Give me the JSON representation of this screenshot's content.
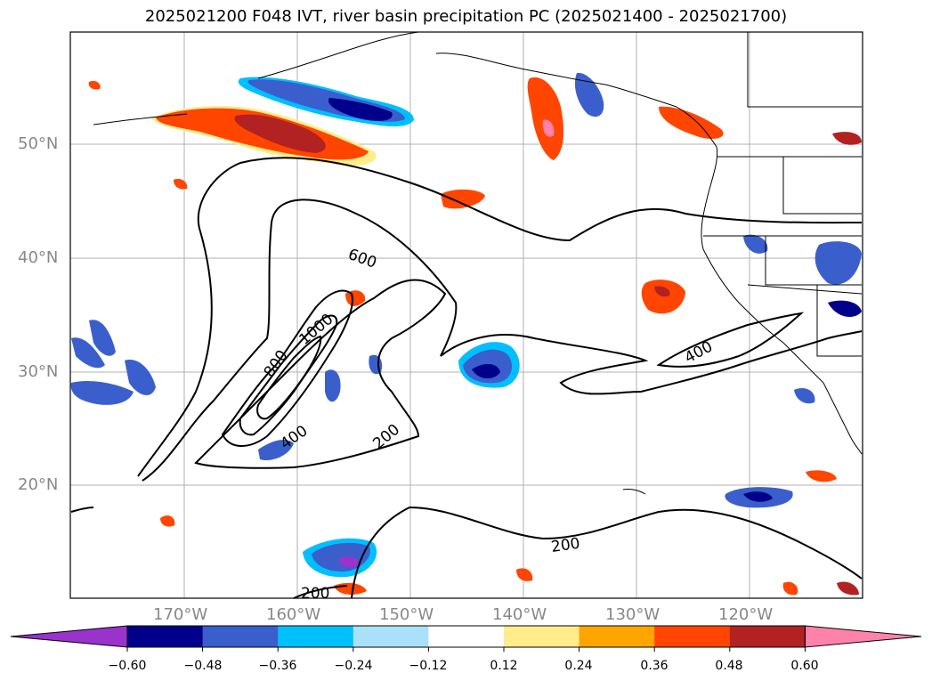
{
  "title": "2025021200 F048 IVT, river basin precipitation PC (2025021400 - 2025021700)",
  "map": {
    "lat_labels": [
      "50°N",
      "40°N",
      "30°N",
      "20°N"
    ],
    "lon_labels": [
      "170°W",
      "160°W",
      "150°W",
      "140°W",
      "130°W",
      "120°W"
    ],
    "contour_labels": [
      "600",
      "1000",
      "800",
      "400",
      "200",
      "400",
      "200",
      "200"
    ]
  },
  "colorbar": {
    "colors": [
      "#9933cc",
      "#00008b",
      "#3a5fcd",
      "#00bfff",
      "#aae1fa",
      "#ffffff",
      "#ffec8b",
      "#ffa500",
      "#ff4500",
      "#b22222",
      "#ff82ab"
    ],
    "tick_labels": [
      "−0.60",
      "−0.48",
      "−0.36",
      "−0.24",
      "−0.12",
      "0.12",
      "0.24",
      "0.36",
      "0.48",
      "0.60"
    ]
  }
}
